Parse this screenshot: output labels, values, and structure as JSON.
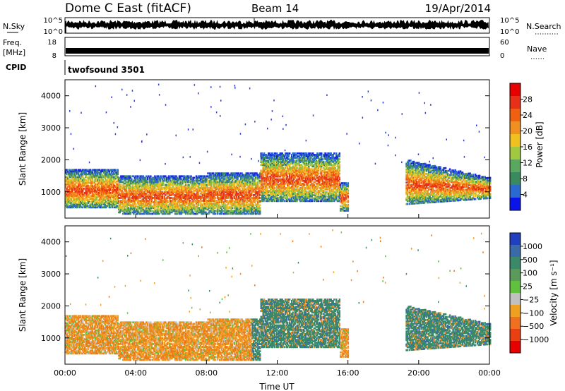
{
  "header": {
    "title": "Dome C East (fitACF)",
    "beam": "Beam 14",
    "date": "19/Apr/2014"
  },
  "summary_panels": {
    "nsky_label": "N.Sky",
    "nsky_ticks": [
      "10^5",
      "10^0"
    ],
    "nsearch_label": "N.Search",
    "nsearch_ticks": [
      "10^5",
      "10^0"
    ],
    "freq_label": "Freq.",
    "freq_units": "[MHz]",
    "freq_ticks": [
      "18",
      "8"
    ],
    "nave_label": "Nave",
    "nave_ticks": [
      "60",
      "0"
    ],
    "cpid_label": "CPID",
    "cpid_text": "twofsound 3501"
  },
  "chart_data": [
    {
      "type": "heatmap",
      "name": "power",
      "ylabel": "Slant Range [km]",
      "ylim": [
        180,
        4500
      ],
      "yticks": [
        "1000",
        "2000",
        "3000",
        "4000"
      ],
      "xlim": [
        0,
        24
      ],
      "colorbar_label": "Power [dB]",
      "colorbar": {
        "ticks": [
          "4",
          "8",
          "12",
          "16",
          "20",
          "24",
          "28"
        ],
        "colors": [
          "#0a14e8",
          "#2a6ad0",
          "#3a8a60",
          "#5aa860",
          "#a0c840",
          "#f0c020",
          "#f09020",
          "#f06010",
          "#e83018",
          "#e80000"
        ]
      }
    },
    {
      "type": "heatmap",
      "name": "velocity",
      "ylabel": "Slant Range [km]",
      "ylim": [
        180,
        4500
      ],
      "yticks": [
        "1000",
        "2000",
        "3000",
        "4000"
      ],
      "xlim": [
        0,
        24
      ],
      "xticks": [
        "00:00",
        "04:00",
        "08:00",
        "12:00",
        "16:00",
        "20:00",
        "00:00"
      ],
      "xlabel": "Time UT",
      "colorbar_label": "Velocity [m s⁻¹]",
      "colorbar": {
        "ticks": [
          "1000",
          "500",
          "100",
          "25",
          "−25",
          "−100",
          "−500",
          "−1000"
        ],
        "colors": [
          "#2040c0",
          "#3a6aa8",
          "#3a8a6a",
          "#5a9a5a",
          "#60c040",
          "#c0c0c0",
          "#f0a020",
          "#f07020",
          "#e84010",
          "#e80000"
        ]
      }
    }
  ]
}
